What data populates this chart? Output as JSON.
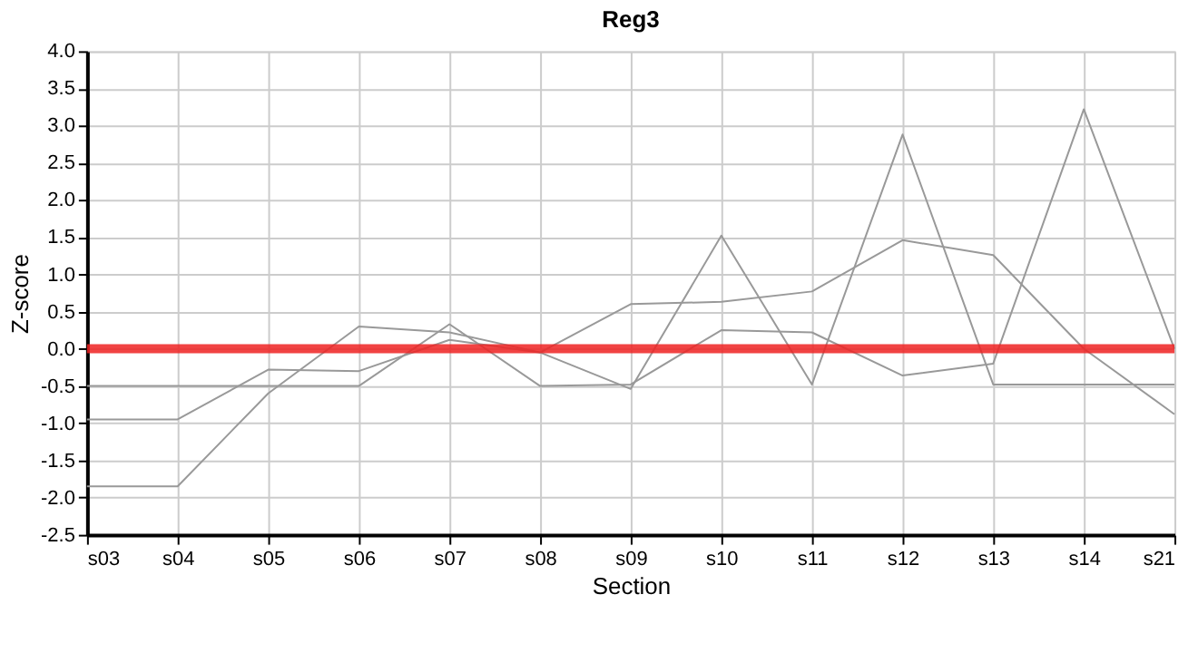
{
  "chart_data": {
    "type": "line",
    "title": "Reg3",
    "xlabel": "Section",
    "ylabel": "Z-score",
    "categories": [
      "s03",
      "s04",
      "s05",
      "s06",
      "s07",
      "s08",
      "s09",
      "s10",
      "s11",
      "s12",
      "s13",
      "s14",
      "s21"
    ],
    "series": [
      {
        "color": "#999999",
        "values": [
          -1.85,
          -1.85,
          -0.6,
          0.3,
          0.22,
          -0.05,
          0.6,
          0.63,
          0.77,
          1.46,
          1.26,
          0.0,
          -0.88
        ]
      },
      {
        "color": "#999999",
        "values": [
          -0.95,
          -0.95,
          -0.28,
          -0.3,
          0.12,
          -0.05,
          -0.54,
          1.52,
          -0.48,
          2.88,
          -0.48,
          -0.48,
          -0.48
        ]
      },
      {
        "color": "#999999",
        "values": [
          -0.5,
          -0.5,
          -0.5,
          -0.5,
          0.33,
          -0.5,
          -0.48,
          0.25,
          0.22,
          -0.36,
          -0.2,
          3.22,
          0.0
        ]
      }
    ],
    "ylim": [
      -2.5,
      4.0
    ],
    "yticks": [
      {
        "value": -2.5,
        "label": "-2.5"
      },
      {
        "value": -2,
        "label": "-2.0"
      },
      {
        "value": -1.5,
        "label": "-1.5"
      },
      {
        "value": -1,
        "label": "-1.0"
      },
      {
        "value": -0.5,
        "label": "-0.5"
      },
      {
        "value": 0,
        "label": "0.0"
      },
      {
        "value": 0.5,
        "label": "0.5"
      },
      {
        "value": 1,
        "label": "1.0"
      },
      {
        "value": 1.5,
        "label": "1.5"
      },
      {
        "value": 2,
        "label": "2.0"
      },
      {
        "value": 2.5,
        "label": "2.5"
      },
      {
        "value": 3,
        "label": "3.0"
      },
      {
        "value": 3.5,
        "label": "3.5"
      },
      {
        "value": 4,
        "label": "4.0"
      }
    ],
    "ref_lines": [
      {
        "axis": "y",
        "value": 0,
        "color": "#ee2222"
      }
    ],
    "grid": true,
    "legend": false,
    "marker": "none",
    "line_style": "solid"
  }
}
